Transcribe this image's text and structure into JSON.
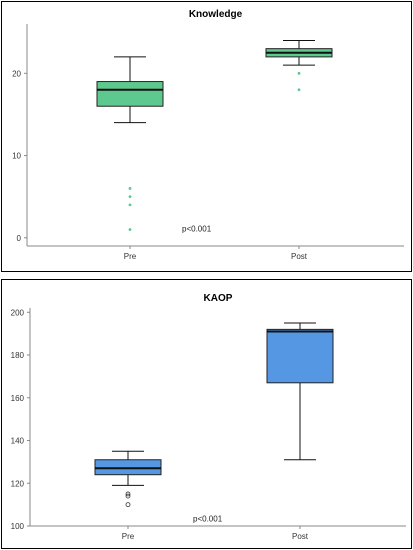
{
  "chart_data": [
    {
      "type": "box",
      "title": "Knowledge",
      "xlabel": "",
      "ylabel": "",
      "ylim": [
        -1,
        26
      ],
      "yticks": [
        0,
        10,
        20
      ],
      "categories": [
        "Pre",
        "Post"
      ],
      "annotation": "p<0.001",
      "color": "#5ec98e",
      "outlier_color": "#5ec98e",
      "series": [
        {
          "category": "Pre",
          "min": 14,
          "q1": 16,
          "median": 18,
          "q3": 19,
          "max": 22,
          "outliers": [
            6,
            5,
            4,
            1
          ]
        },
        {
          "category": "Post",
          "min": 21,
          "q1": 22,
          "median": 22.5,
          "q3": 23,
          "max": 24,
          "outliers": [
            20,
            18
          ]
        }
      ]
    },
    {
      "type": "box",
      "title": "KAOP",
      "xlabel": "",
      "ylabel": "",
      "ylim": [
        100,
        202
      ],
      "yticks": [
        100,
        120,
        140,
        160,
        180,
        200
      ],
      "categories": [
        "Pre",
        "Post"
      ],
      "annotation": "p<0.001",
      "color": "#5597e3",
      "outlier_color": "#333333",
      "series": [
        {
          "category": "Pre",
          "min": 119,
          "q1": 124,
          "median": 127,
          "q3": 131,
          "max": 135,
          "outliers": [
            115,
            114,
            110
          ]
        },
        {
          "category": "Post",
          "min": 131,
          "q1": 167,
          "median": 191,
          "q3": 192,
          "max": 195,
          "outliers": []
        }
      ]
    }
  ]
}
